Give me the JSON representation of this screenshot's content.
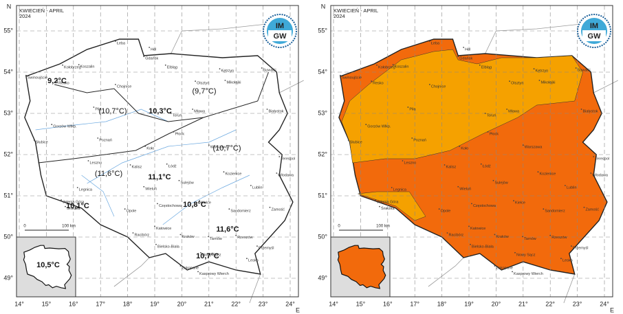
{
  "header": {
    "title": "KWIECIEŃ - APRIL",
    "year": "2024"
  },
  "logo": {
    "top": "IM",
    "bottom": "GW"
  },
  "axes": {
    "north": "N",
    "east": "E",
    "lat_ticks": [
      {
        "value": 55,
        "label": "55°"
      },
      {
        "value": 54,
        "label": "54°"
      },
      {
        "value": 53,
        "label": "53°"
      },
      {
        "value": 52,
        "label": "52°"
      },
      {
        "value": 51,
        "label": "51°"
      },
      {
        "value": 50,
        "label": "50°"
      },
      {
        "value": 49,
        "label": "49°"
      }
    ],
    "lon_ticks": [
      {
        "value": 14,
        "label": "14°"
      },
      {
        "value": 15,
        "label": "15°"
      },
      {
        "value": 16,
        "label": "16°"
      },
      {
        "value": 17,
        "label": "17°"
      },
      {
        "value": 18,
        "label": "18°"
      },
      {
        "value": 19,
        "label": "19°"
      },
      {
        "value": 20,
        "label": "20°"
      },
      {
        "value": 21,
        "label": "21°"
      },
      {
        "value": 22,
        "label": "22°"
      },
      {
        "value": 23,
        "label": "23°"
      },
      {
        "value": 24,
        "label": "24°"
      }
    ]
  },
  "scale_bar": {
    "start": "0",
    "end": "100 km"
  },
  "cities": [
    "Świnoujście",
    "Kołobrzeg",
    "Koszalin",
    "Łeba",
    "Hel",
    "Gdańsk",
    "Elbląg",
    "Kętrzyn",
    "Suwałki",
    "Resko",
    "Chojnice",
    "Olsztyn",
    "Mikołajki",
    "Piła",
    "Toruń",
    "Mława",
    "Białystok",
    "Gorzów Wlkp.",
    "Poznań",
    "Płock",
    "Słubice",
    "Koło",
    "Warszawa",
    "Terespol",
    "Leszno",
    "Kalisz",
    "Łódź",
    "Sulejów",
    "Włodawa",
    "Legnica",
    "Wieluń",
    "Kozienice",
    "Lublin",
    "Jelenia Góra",
    "Śnieżka",
    "Opole",
    "Częstochowa",
    "Kielce",
    "Sandomierz",
    "Zamość",
    "Racibórz",
    "Katowice",
    "Kraków",
    "Tarnów",
    "Rzeszów",
    "Przemyśl",
    "Bielsko-Biała",
    "Lesko",
    "Nowy Sącz",
    "Zakopane",
    "Kasprowy Wierch"
  ],
  "left_map": {
    "temperature_labels": [
      "9,2°C",
      "(10,7°C)",
      "10,3°C",
      "(9,7°C)",
      "(10,7°C)",
      "(11,6°C)",
      "11,1°C",
      "10,1°C",
      "10,8°C",
      "11,6°C",
      "10,7°C"
    ],
    "inset_label": "10,5°C"
  }
}
